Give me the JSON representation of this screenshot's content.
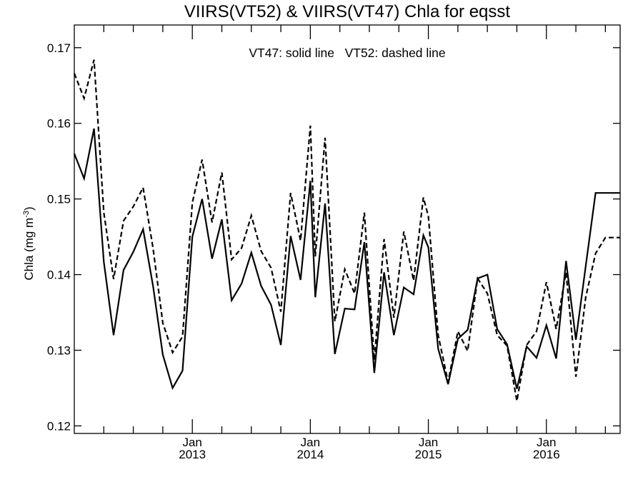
{
  "chart_data": {
    "type": "line",
    "title": "VIIRS(VT52) & VIIRS(VT47)  Chla for eqsst",
    "annotation": "VT47: solid line   VT52: dashed line",
    "ylabel_main": "Chla (mg m",
    "ylabel_sup": "-3",
    "ylabel_close": ")",
    "xlim": [
      2012.0,
      2016.625
    ],
    "ylim": [
      0.119,
      0.173
    ],
    "grid": false,
    "y_ticks": [
      {
        "value": 0.12,
        "label": "0.12"
      },
      {
        "value": 0.13,
        "label": "0.13"
      },
      {
        "value": 0.14,
        "label": "0.14"
      },
      {
        "value": 0.15,
        "label": "0.15"
      },
      {
        "value": 0.16,
        "label": "0.16"
      },
      {
        "value": 0.17,
        "label": "0.17"
      }
    ],
    "x_major_ticks": [
      {
        "value": 2013.0,
        "month": "Jan",
        "year": "2013"
      },
      {
        "value": 2014.0,
        "month": "Jan",
        "year": "2014"
      },
      {
        "value": 2015.0,
        "month": "Jan",
        "year": "2015"
      },
      {
        "value": 2016.0,
        "month": "Jan",
        "year": "2016"
      }
    ],
    "x_minor_ticks": [
      2012.25,
      2012.5,
      2012.75,
      2013.25,
      2013.5,
      2013.75,
      2014.25,
      2014.5,
      2014.75,
      2015.25,
      2015.5,
      2015.75,
      2016.25,
      2016.5
    ],
    "series": [
      {
        "style": "solid",
        "x": [
          2012.0,
          2012.083,
          2012.167,
          2012.25,
          2012.333,
          2012.417,
          2012.5,
          2012.583,
          2012.667,
          2012.75,
          2012.833,
          2012.917,
          2013.0,
          2013.083,
          2013.167,
          2013.25,
          2013.333,
          2013.417,
          2013.5,
          2013.583,
          2013.667,
          2013.75,
          2013.833,
          2013.917,
          2014.0,
          2014.042,
          2014.125,
          2014.208,
          2014.292,
          2014.375,
          2014.458,
          2014.542,
          2014.625,
          2014.708,
          2014.792,
          2014.875,
          2014.958,
          2015.0,
          2015.083,
          2015.167,
          2015.25,
          2015.333,
          2015.417,
          2015.5,
          2015.583,
          2015.667,
          2015.75,
          2015.833,
          2015.917,
          2016.0,
          2016.083,
          2016.167,
          2016.25,
          2016.333,
          2016.417,
          2016.5,
          2016.583,
          2016.625
        ],
        "y": [
          0.156,
          0.1527,
          0.1593,
          0.1417,
          0.132,
          0.1406,
          0.143,
          0.146,
          0.1385,
          0.1294,
          0.125,
          0.1273,
          0.145,
          0.15,
          0.1421,
          0.1473,
          0.1366,
          0.1388,
          0.1429,
          0.1385,
          0.136,
          0.1307,
          0.1451,
          0.1393,
          0.1524,
          0.137,
          0.1494,
          0.1295,
          0.1355,
          0.1354,
          0.1443,
          0.127,
          0.1403,
          0.132,
          0.1383,
          0.1374,
          0.1452,
          0.1436,
          0.1302,
          0.1255,
          0.1315,
          0.1327,
          0.1395,
          0.14,
          0.1328,
          0.1308,
          0.1249,
          0.1305,
          0.129,
          0.1333,
          0.1289,
          0.1418,
          0.1314,
          0.1411,
          0.1508,
          0.1508,
          0.1508,
          0.1508
        ]
      },
      {
        "style": "dashed",
        "x": [
          2012.0,
          2012.083,
          2012.167,
          2012.25,
          2012.333,
          2012.417,
          2012.5,
          2012.583,
          2012.667,
          2012.75,
          2012.833,
          2012.917,
          2013.0,
          2013.083,
          2013.167,
          2013.25,
          2013.333,
          2013.417,
          2013.5,
          2013.583,
          2013.667,
          2013.75,
          2013.833,
          2013.917,
          2014.0,
          2014.042,
          2014.125,
          2014.208,
          2014.292,
          2014.375,
          2014.458,
          2014.542,
          2014.625,
          2014.708,
          2014.792,
          2014.875,
          2014.958,
          2015.0,
          2015.083,
          2015.167,
          2015.25,
          2015.333,
          2015.417,
          2015.5,
          2015.583,
          2015.667,
          2015.75,
          2015.833,
          2015.917,
          2016.0,
          2016.083,
          2016.167,
          2016.25,
          2016.333,
          2016.417,
          2016.5,
          2016.583,
          2016.625
        ],
        "y": [
          0.1666,
          0.1633,
          0.1684,
          0.1482,
          0.1394,
          0.1471,
          0.149,
          0.1515,
          0.1435,
          0.1336,
          0.1297,
          0.1318,
          0.1495,
          0.1552,
          0.1469,
          0.1535,
          0.142,
          0.1435,
          0.1478,
          0.1431,
          0.1409,
          0.1351,
          0.1508,
          0.1445,
          0.1597,
          0.1424,
          0.1581,
          0.1338,
          0.1407,
          0.1375,
          0.1482,
          0.1287,
          0.1447,
          0.1343,
          0.1457,
          0.1392,
          0.1502,
          0.1477,
          0.132,
          0.1258,
          0.1325,
          0.1299,
          0.1395,
          0.1375,
          0.132,
          0.1306,
          0.1233,
          0.1307,
          0.1325,
          0.139,
          0.1328,
          0.1403,
          0.1265,
          0.137,
          0.1428,
          0.1449,
          0.1449,
          0.1449
        ]
      }
    ]
  }
}
